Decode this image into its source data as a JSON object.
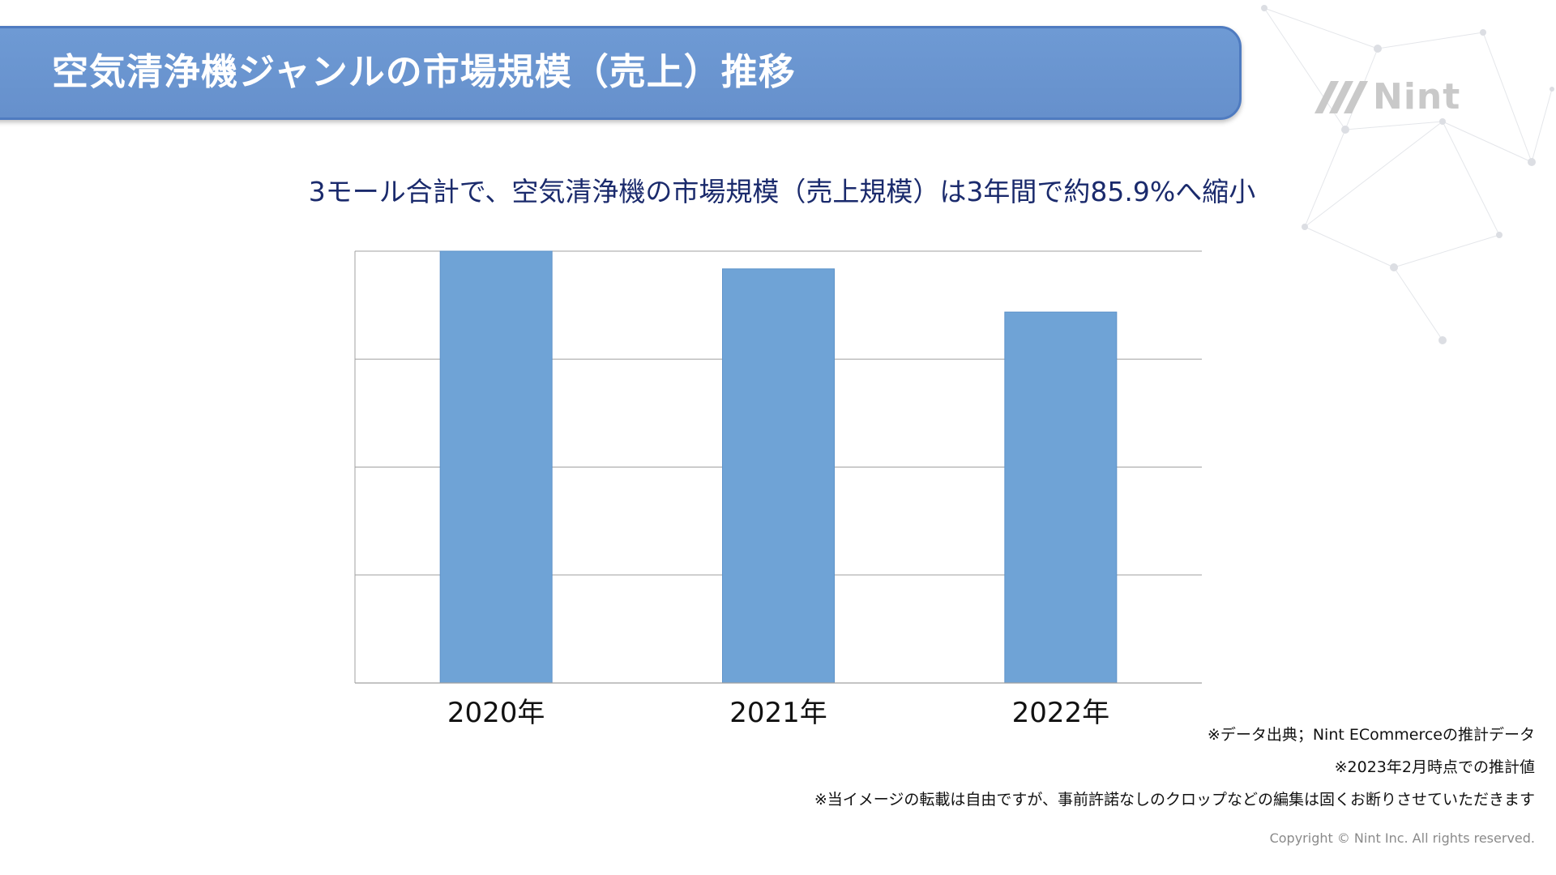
{
  "header": {
    "title": "空気清浄機ジャンルの市場規模（売上）推移"
  },
  "logo": {
    "text": "Nint",
    "icon": "nint-logo-icon"
  },
  "subtitle": "3モール合計で、空気清浄機の市場規模（売上規模）は3年間で約85.9%へ縮小",
  "chart_data": {
    "type": "bar",
    "categories": [
      "2020年",
      "2021年",
      "2022年"
    ],
    "values": [
      100,
      95.9,
      85.9
    ],
    "value_unit": "index (2020年 = 100)",
    "ylim": [
      0,
      100
    ],
    "gridlines": 4,
    "grid": true,
    "bar_color": "#6fa3d6",
    "title": "",
    "xlabel": "",
    "ylabel": ""
  },
  "notes": [
    "※データ出典；Nint ECommerceの推計データ",
    "※2023年2月時点での推計値",
    "※当イメージの転載は自由ですが、事前許諾なしのクロップなどの編集は固くお断りさせていただきます"
  ],
  "copyright": "Copyright © Nint Inc. All rights reserved.",
  "colors": {
    "banner": "#6690cc",
    "banner_border": "#4f7bc0",
    "subtitle": "#1a2a6c",
    "bar": "#6fa3d6",
    "grid": "#a0a0a0"
  }
}
